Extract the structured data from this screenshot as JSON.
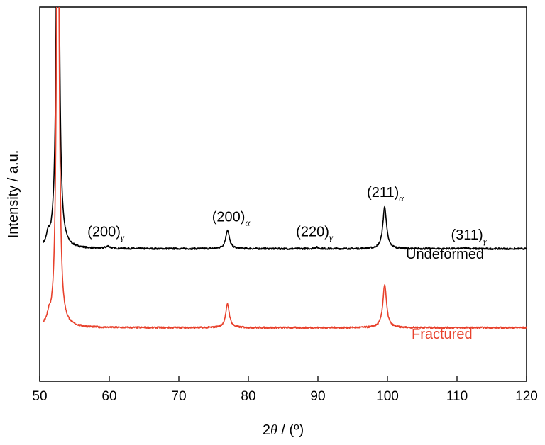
{
  "chart_data": {
    "type": "line",
    "xlabel_prefix": "2",
    "xlabel_symbol": "θ",
    "xlabel_suffix": " / (º)",
    "ylabel": "Intensity / a.u.",
    "xlim": [
      50,
      120
    ],
    "ylim": [
      0,
      100
    ],
    "yticks_visible": false,
    "grid": false,
    "xticks": [
      50,
      60,
      70,
      80,
      90,
      100,
      110,
      120
    ],
    "colors": {
      "undeformed": "#000000",
      "fractured": "#e8412c"
    },
    "series": [
      {
        "name": "Undeformed",
        "color": "#000000",
        "baseline": 35.4,
        "peaks": [
          {
            "x": 51.2,
            "height": 2.5,
            "width": 0.25
          },
          {
            "x": 52.6,
            "height": 140,
            "width": 0.22
          },
          {
            "x": 59.8,
            "height": 0.6,
            "width": 0.35
          },
          {
            "x": 77.0,
            "height": 5.0,
            "width": 0.32
          },
          {
            "x": 89.8,
            "height": 0.4,
            "width": 0.35
          },
          {
            "x": 99.6,
            "height": 11.2,
            "width": 0.32
          },
          {
            "x": 111.2,
            "height": 0.3,
            "width": 0.35
          }
        ]
      },
      {
        "name": "Fractured",
        "color": "#e8412c",
        "baseline": 14.3,
        "peaks": [
          {
            "x": 51.3,
            "height": 2.0,
            "width": 0.25
          },
          {
            "x": 52.6,
            "height": 140,
            "width": 0.22
          },
          {
            "x": 77.0,
            "height": 6.3,
            "width": 0.32
          },
          {
            "x": 99.6,
            "height": 11.5,
            "width": 0.32
          }
        ]
      }
    ],
    "annotations": [
      {
        "text": "(200)",
        "sub": "γ",
        "x": 59.5,
        "y": 38.7
      },
      {
        "text": "(200)",
        "sub": "α",
        "x": 77.5,
        "y": 42.7
      },
      {
        "text": "(220)",
        "sub": "γ",
        "x": 89.5,
        "y": 38.7
      },
      {
        "text": "(211)",
        "sub": "α",
        "x": 99.7,
        "y": 49.2
      },
      {
        "text": "(311)",
        "sub": "γ",
        "x": 111.7,
        "y": 37.9
      }
    ]
  }
}
